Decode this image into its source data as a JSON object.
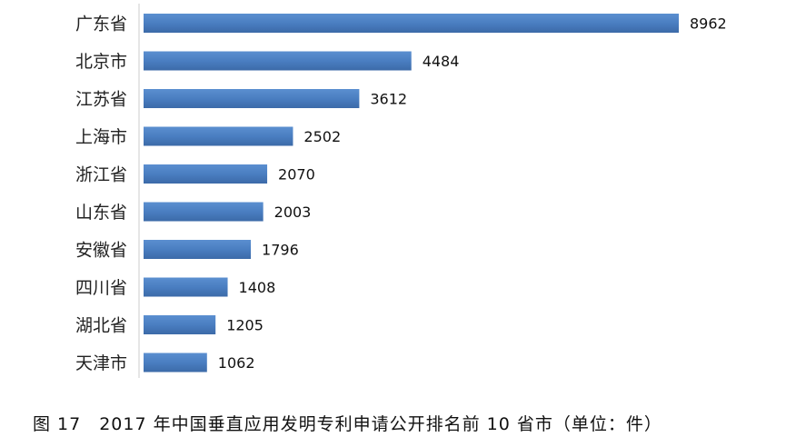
{
  "chart_data": {
    "type": "bar",
    "orientation": "horizontal",
    "categories": [
      "广东省",
      "北京市",
      "江苏省",
      "上海市",
      "浙江省",
      "山东省",
      "安徽省",
      "四川省",
      "湖北省",
      "天津市"
    ],
    "values": [
      8962,
      4484,
      3612,
      2502,
      2070,
      2003,
      1796,
      1408,
      1205,
      1062
    ],
    "data_labels": [
      "8962",
      "4484",
      "3612",
      "2502",
      "2070",
      "2003",
      "1796",
      "1408",
      "1205",
      "1062"
    ],
    "xlim": [
      0,
      8962
    ],
    "grid": false,
    "bar_color": "#4A7EC1"
  },
  "caption": "图 17　2017 年中国垂直应用发明专利申请公开排名前 10 省市（单位：件）"
}
